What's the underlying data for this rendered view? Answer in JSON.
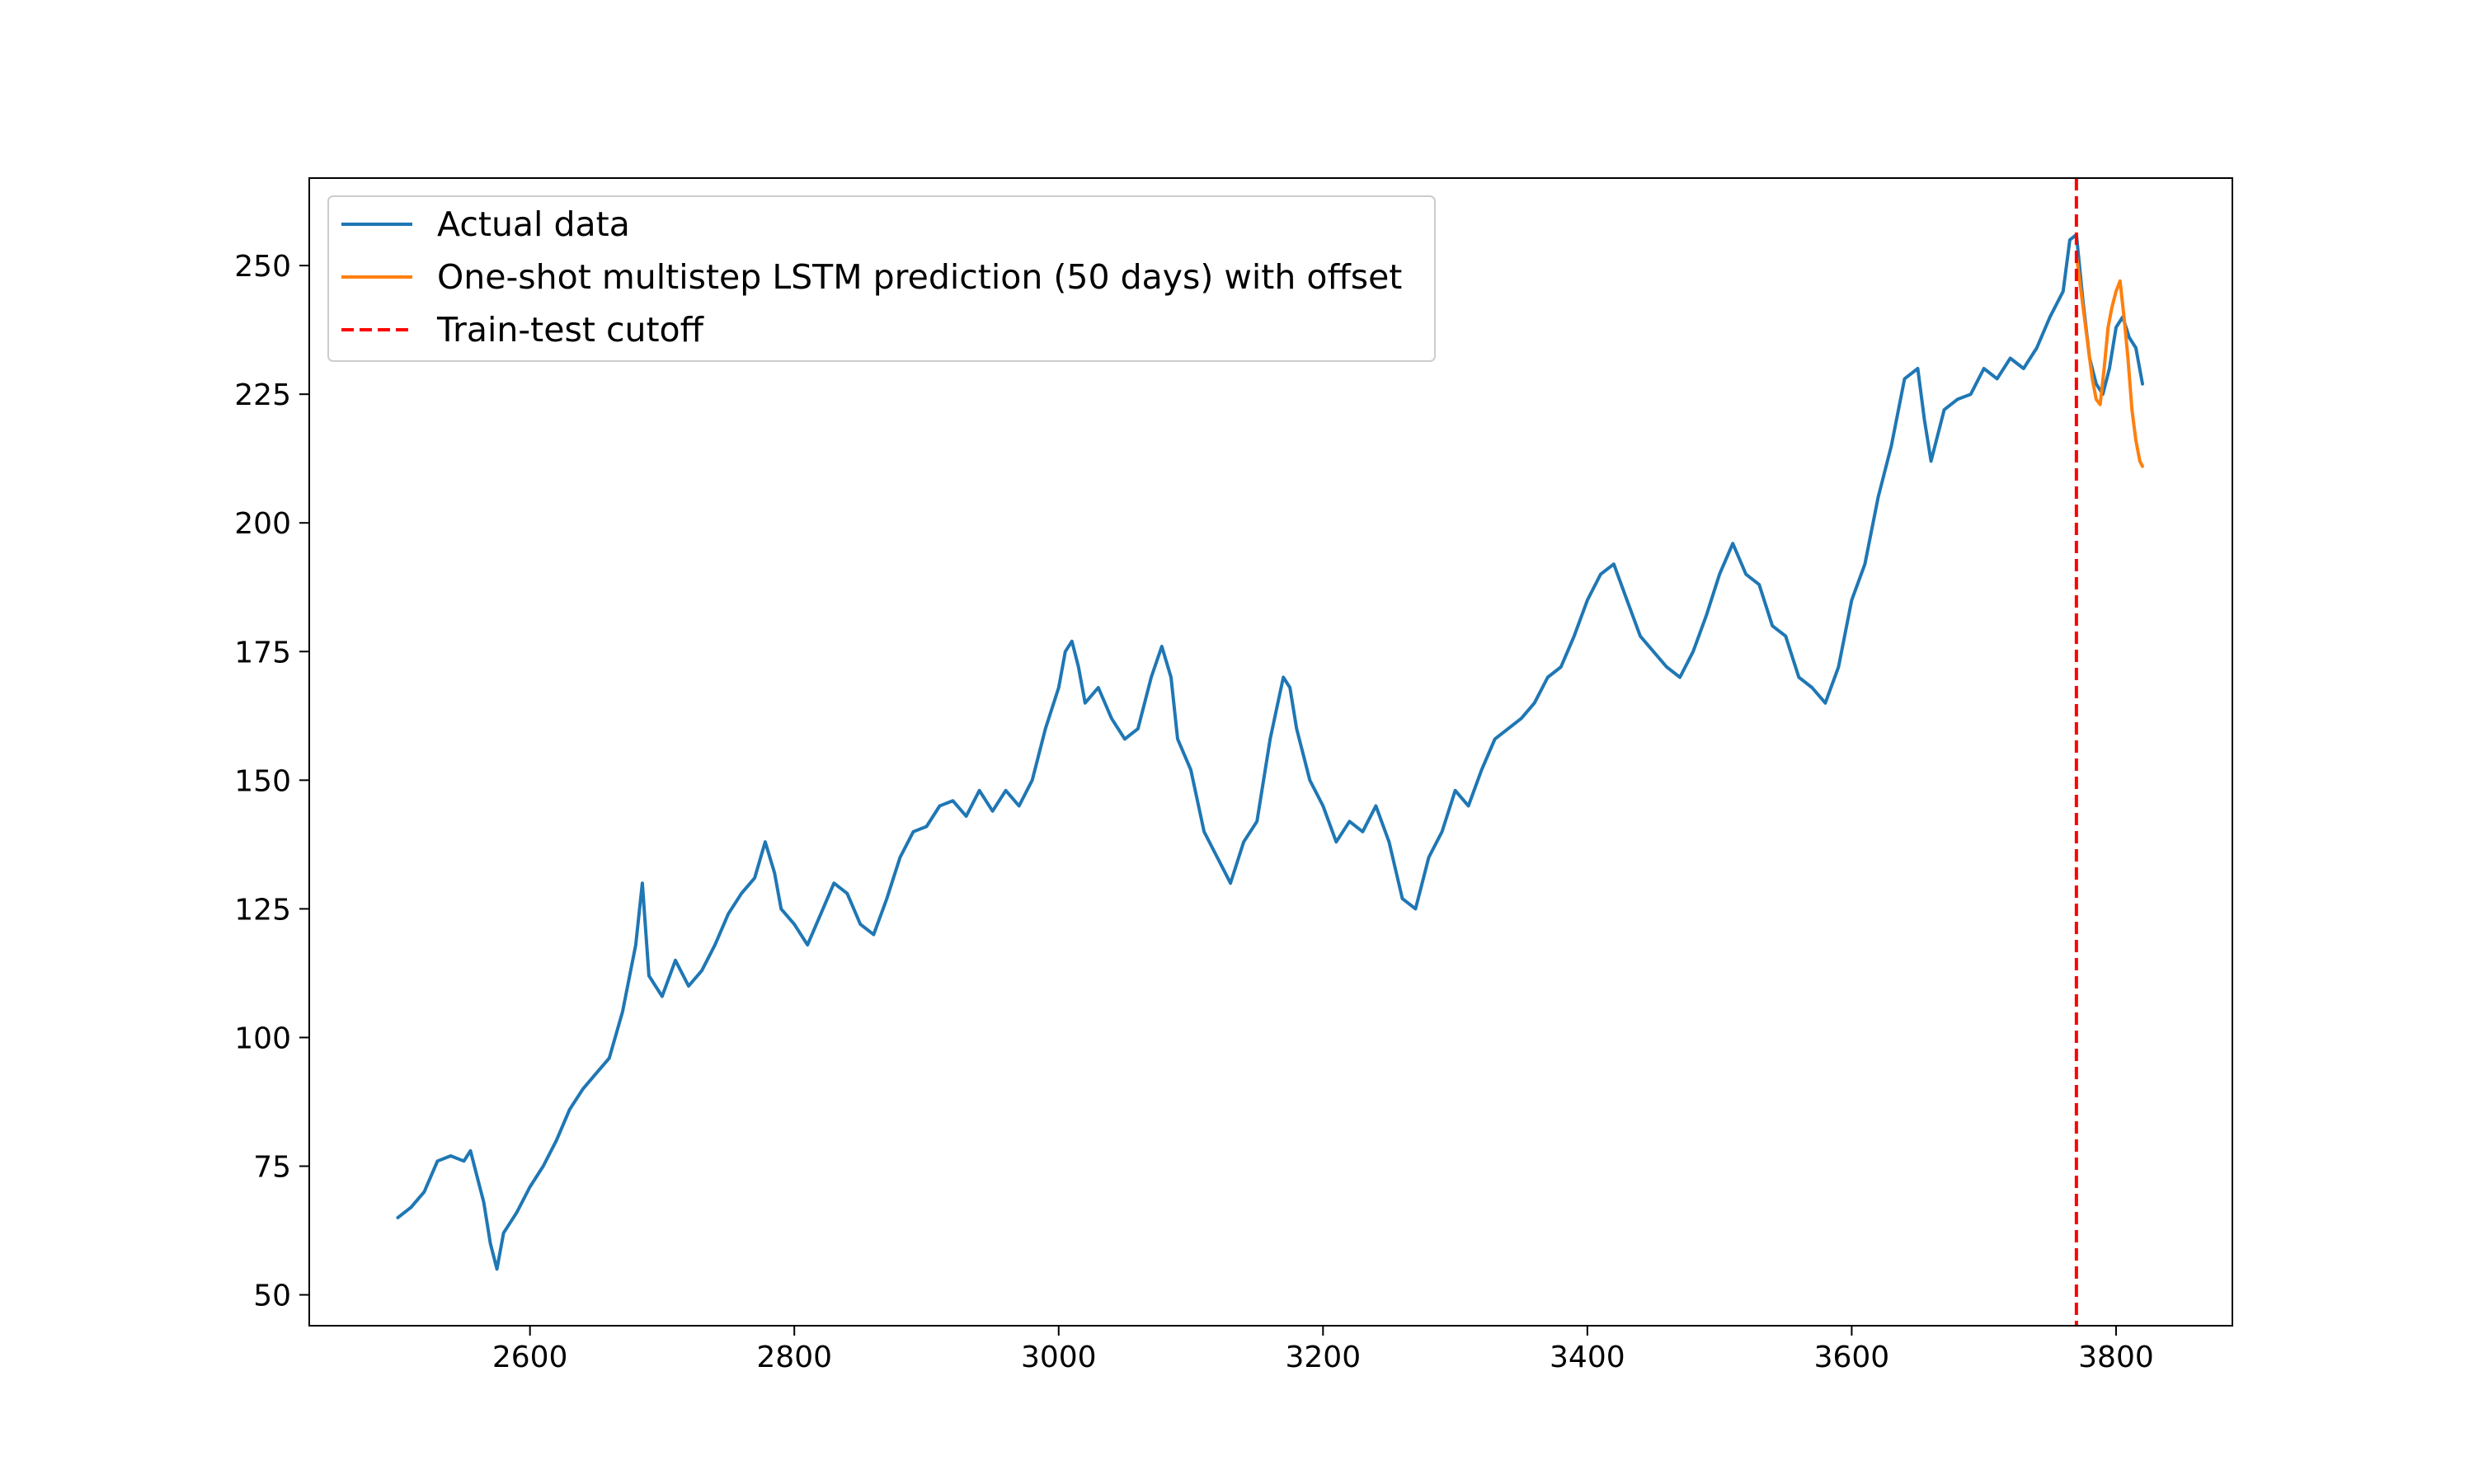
{
  "chart_data": {
    "type": "line",
    "title": "",
    "xlabel": "",
    "ylabel": "",
    "xlim": [
      2433,
      3888
    ],
    "ylim": [
      44,
      267
    ],
    "x_ticks": [
      2600,
      2800,
      3000,
      3200,
      3400,
      3600,
      3800
    ],
    "y_ticks": [
      50,
      75,
      100,
      125,
      150,
      175,
      200,
      225,
      250
    ],
    "grid": false,
    "legend_position": "top-left",
    "legend": [
      {
        "label": "Actual data",
        "color": "#1f77b4",
        "style": "solid"
      },
      {
        "label": "One-shot multistep LSTM prediction (50 days) with offset",
        "color": "#ff7f0e",
        "style": "solid"
      },
      {
        "label": "Train-test cutoff",
        "color": "#ff0000",
        "style": "dashed"
      }
    ],
    "series": [
      {
        "name": "Actual data",
        "color": "#1f77b4",
        "x": [
          2500,
          2510,
          2520,
          2530,
          2540,
          2550,
          2555,
          2560,
          2565,
          2570,
          2575,
          2580,
          2590,
          2600,
          2610,
          2620,
          2630,
          2640,
          2650,
          2660,
          2670,
          2680,
          2685,
          2690,
          2700,
          2710,
          2720,
          2730,
          2740,
          2750,
          2760,
          2770,
          2778,
          2785,
          2790,
          2800,
          2810,
          2820,
          2830,
          2840,
          2850,
          2860,
          2870,
          2880,
          2890,
          2900,
          2910,
          2920,
          2930,
          2940,
          2950,
          2960,
          2970,
          2980,
          2990,
          3000,
          3005,
          3010,
          3015,
          3020,
          3030,
          3040,
          3050,
          3060,
          3070,
          3078,
          3085,
          3090,
          3100,
          3110,
          3120,
          3130,
          3140,
          3150,
          3160,
          3170,
          3175,
          3180,
          3190,
          3200,
          3210,
          3220,
          3230,
          3240,
          3250,
          3260,
          3270,
          3275,
          3280,
          3290,
          3300,
          3310,
          3320,
          3330,
          3340,
          3350,
          3360,
          3370,
          3380,
          3390,
          3400,
          3410,
          3420,
          3430,
          3440,
          3450,
          3460,
          3470,
          3480,
          3490,
          3500,
          3510,
          3520,
          3530,
          3540,
          3550,
          3560,
          3570,
          3580,
          3590,
          3600,
          3610,
          3620,
          3630,
          3640,
          3650,
          3655,
          3660,
          3670,
          3680,
          3690,
          3700,
          3710,
          3720,
          3730,
          3740,
          3750,
          3760,
          3765,
          3770,
          3775,
          3780,
          3785,
          3790,
          3795,
          3800,
          3805,
          3810,
          3815,
          3820
        ],
        "y": [
          65,
          67,
          70,
          76,
          77,
          76,
          78,
          73,
          68,
          60,
          55,
          62,
          66,
          71,
          75,
          80,
          86,
          90,
          93,
          96,
          105,
          118,
          130,
          112,
          108,
          115,
          110,
          113,
          118,
          124,
          128,
          131,
          138,
          132,
          125,
          122,
          118,
          124,
          130,
          128,
          122,
          120,
          127,
          135,
          140,
          141,
          145,
          146,
          143,
          148,
          144,
          148,
          145,
          150,
          160,
          168,
          175,
          177,
          172,
          165,
          168,
          162,
          158,
          160,
          170,
          176,
          170,
          158,
          152,
          140,
          135,
          130,
          138,
          142,
          158,
          170,
          168,
          160,
          150,
          145,
          138,
          142,
          140,
          145,
          138,
          127,
          125,
          130,
          135,
          140,
          148,
          145,
          152,
          158,
          160,
          162,
          165,
          170,
          172,
          178,
          185,
          190,
          192,
          185,
          178,
          175,
          172,
          170,
          175,
          182,
          190,
          196,
          190,
          188,
          180,
          178,
          170,
          168,
          165,
          172,
          185,
          192,
          205,
          215,
          228,
          230,
          220,
          212,
          222,
          224,
          225,
          230,
          228,
          232,
          230,
          234,
          240,
          245,
          255,
          256,
          243,
          232,
          227,
          225,
          230,
          238,
          240,
          236,
          234,
          227
        ]
      },
      {
        "name": "One-shot multistep LSTM prediction (50 days) with offset",
        "color": "#ff7f0e",
        "x": [
          3770,
          3773,
          3776,
          3779,
          3782,
          3785,
          3788,
          3791,
          3794,
          3797,
          3800,
          3803,
          3806,
          3809,
          3812,
          3815,
          3818,
          3820
        ],
        "y": [
          252,
          246,
          240,
          234,
          228,
          224,
          223,
          230,
          238,
          242,
          245,
          247,
          240,
          232,
          222,
          216,
          212,
          211
        ]
      }
    ],
    "cutoff_x": 3770
  }
}
